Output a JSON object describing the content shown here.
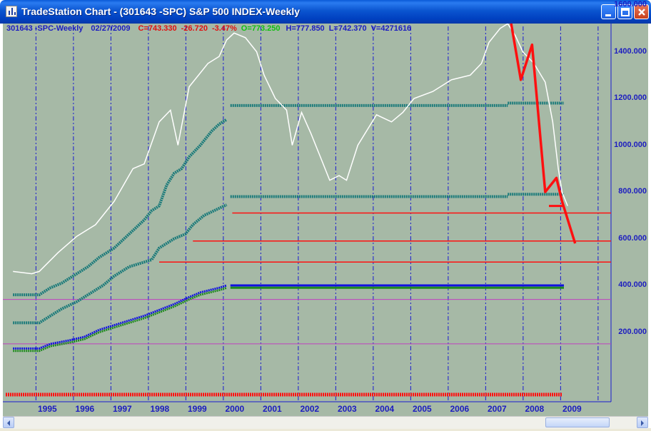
{
  "window": {
    "title": "TradeStation Chart - (301643 -SPC) S&P 500 INDEX-Weekly"
  },
  "status_bar": {
    "symbol": "301643 -SPC-Weekly",
    "date": "02/27/2009",
    "close": "C=743.330",
    "change": "-26.720",
    "change_pct": "-3.47%",
    "open": "O=773.250",
    "high": "H=777.850",
    "low": "L=742.370",
    "volume": "V=4271616"
  },
  "colors": {
    "background": "#a6b9a6",
    "price": "#ffffff",
    "grid": "#1a1ad0",
    "support_green": "#1f8a1f",
    "support_blue": "#1010e0",
    "support_teal": "#1a7a7a",
    "red": "#ff1010",
    "magenta": "#c040c0",
    "axis_text": "#1c1cc0"
  },
  "icons": {
    "app": "chart-icon",
    "minimize": "minimize-icon",
    "maximize": "maximize-icon",
    "close": "close-icon",
    "scroll_left": "arrow-left-icon",
    "scroll_right": "arrow-right-icon"
  },
  "chart_data": {
    "type": "line",
    "title": "S&P 500 INDEX-Weekly",
    "x_axis_years": [
      "1995",
      "1996",
      "1997",
      "1998",
      "1999",
      "2000",
      "2001",
      "2002",
      "2003",
      "2004",
      "2005",
      "2006",
      "2007",
      "2008",
      "2009"
    ],
    "y_ticks": [
      "1600.000",
      "1400.000",
      "1200.000",
      "1000.000",
      "800.000",
      "600.000",
      "400.000",
      "200.000"
    ],
    "ylim": [
      0,
      1600
    ],
    "grid": "vertical dashed year lines",
    "series": [
      {
        "x": [
          1994.3,
          1994.8,
          1995.0,
          1995.5,
          1996.0,
          1996.5,
          1997.0,
          1997.5,
          1997.8,
          1998.2,
          1998.5,
          1998.7,
          1999.0,
          1999.5,
          1999.8,
          2000.0,
          2000.2,
          2000.5,
          2000.8,
          2001.0,
          2001.3,
          2001.6,
          2001.75,
          2002.0,
          2002.25,
          2002.5,
          2002.75,
          2003.0,
          2003.2,
          2003.5,
          2004.0,
          2004.4,
          2004.7,
          2005.0,
          2005.5,
          2006.0,
          2006.5,
          2006.8,
          2007.0,
          2007.3,
          2007.5,
          2007.7,
          2007.9,
          2008.2,
          2008.5,
          2008.7,
          2008.85,
          2008.95,
          2009.1
        ],
        "y": [
          460,
          450,
          460,
          540,
          610,
          660,
          760,
          900,
          920,
          1100,
          1150,
          1000,
          1250,
          1350,
          1380,
          1450,
          1480,
          1460,
          1400,
          1300,
          1200,
          1150,
          1000,
          1140,
          1050,
          950,
          850,
          870,
          850,
          1000,
          1130,
          1100,
          1140,
          1200,
          1230,
          1280,
          1300,
          1350,
          1440,
          1500,
          1520,
          1470,
          1400,
          1350,
          1270,
          1100,
          900,
          800,
          740
        ]
      },
      {
        "x": [
          2007.55,
          2007.85,
          2008.15,
          2008.5,
          2008.8,
          2008.95,
          2009.3
        ],
        "y": [
          1560,
          1280,
          1430,
          800,
          860,
          760,
          580
        ]
      }
    ],
    "levels": [
      1180,
      790,
      710,
      590,
      500,
      400,
      390,
      340,
      150
    ],
    "annotations": []
  }
}
